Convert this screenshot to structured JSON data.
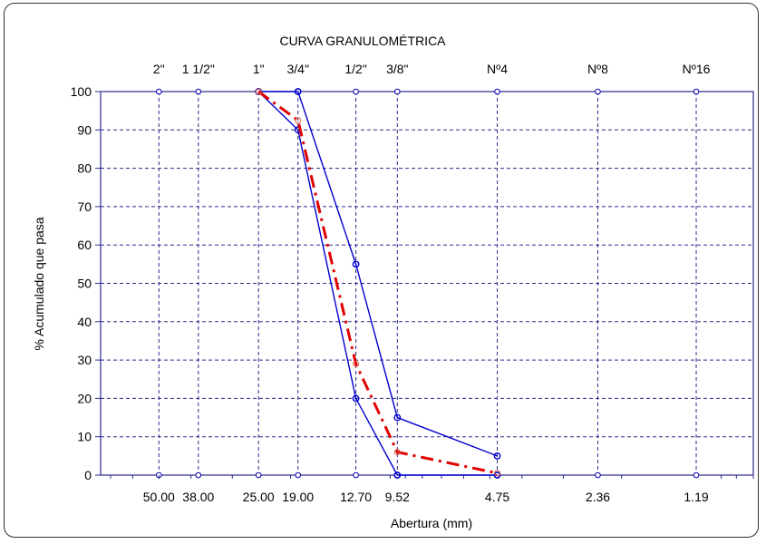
{
  "chart_data": {
    "type": "line",
    "title": "CURVA GRANULOMÉTRICA",
    "xlabel": "Abertura (mm)",
    "ylabel": "% Acumulado que pasa",
    "x_scale": "log",
    "x_direction": "decreasing",
    "ylim": [
      0,
      100
    ],
    "yticks": [
      0,
      10,
      20,
      30,
      40,
      50,
      60,
      70,
      80,
      90,
      100
    ],
    "sieves": [
      {
        "name": "2\"",
        "opening": "50.00",
        "value": 50.0
      },
      {
        "name": "1 1/2\"",
        "opening": "38.00",
        "value": 38.0
      },
      {
        "name": "1\"",
        "opening": "25.00",
        "value": 25.0
      },
      {
        "name": "3/4\"",
        "opening": "19.00",
        "value": 19.0
      },
      {
        "name": "1/2\"",
        "opening": "12.70",
        "value": 12.7
      },
      {
        "name": "3/8\"",
        "opening": "9.52",
        "value": 9.52
      },
      {
        "name": "Nº4",
        "opening": "4.75",
        "value": 4.75
      },
      {
        "name": "Nº8",
        "opening": "2.36",
        "value": 2.36
      },
      {
        "name": "Nº16",
        "opening": "1.19",
        "value": 1.19
      }
    ],
    "series": [
      {
        "color": "#0000cc",
        "style": "solid",
        "x": [
          25.0,
          19.0,
          12.7,
          9.52,
          4.75
        ],
        "y": [
          100,
          100,
          55,
          15,
          5
        ]
      },
      {
        "color": "#0000cc",
        "style": "solid",
        "x": [
          25.0,
          19.0,
          12.7,
          9.52,
          4.75
        ],
        "y": [
          100,
          90,
          20,
          0,
          0
        ]
      },
      {
        "color": "#e00000",
        "style": "dash-dot",
        "x": [
          25.0,
          19.0,
          12.7,
          9.52,
          4.75
        ],
        "y": [
          100,
          92.5,
          29,
          6,
          0.5
        ]
      }
    ],
    "grid": true,
    "grid_color": "#2a2a8c"
  }
}
